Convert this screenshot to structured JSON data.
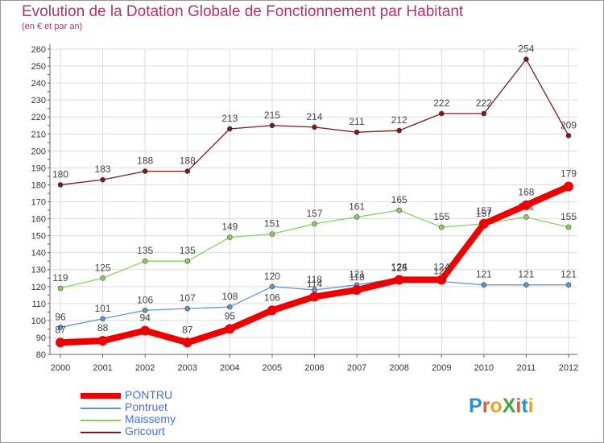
{
  "title": "Evolution de la Dotation Globale de Fonctionnement par Habitant",
  "subtitle": "(en € et par an)",
  "logo": {
    "text": "ProXiti"
  },
  "colors": {
    "title": "#b0336f",
    "axis": "#666666",
    "grid": "#dddddd",
    "legend_text": "#4a6fd6"
  },
  "chart_data": {
    "type": "line",
    "title": "Evolution de la Dotation Globale de Fonctionnement par Habitant",
    "subtitle": "(en € et par an)",
    "xlabel": "",
    "ylabel": "",
    "ylim": [
      80,
      260
    ],
    "yticks": [
      80,
      90,
      100,
      110,
      120,
      130,
      140,
      150,
      160,
      170,
      180,
      190,
      200,
      210,
      220,
      230,
      240,
      250,
      260
    ],
    "grid": true,
    "legend_position": "bottom-left",
    "categories": [
      "2000",
      "2001",
      "2002",
      "2003",
      "2004",
      "2005",
      "2006",
      "2007",
      "2008",
      "2009",
      "2010",
      "2011",
      "2012"
    ],
    "series": [
      {
        "name": "Gricourt",
        "color": "#7b1a1a",
        "weight": "thin",
        "values": [
          180,
          183,
          188,
          188,
          213,
          215,
          214,
          211,
          212,
          222,
          222,
          254,
          209
        ]
      },
      {
        "name": "Maissemy",
        "color": "#88d060",
        "weight": "thin",
        "values": [
          119,
          125,
          135,
          135,
          149,
          151,
          157,
          161,
          165,
          155,
          157,
          161,
          155
        ]
      },
      {
        "name": "Pontruet",
        "color": "#5e96cc",
        "weight": "thin",
        "values": [
          96,
          101,
          106,
          107,
          108,
          120,
          118,
          121,
          125,
          123,
          121,
          121,
          121
        ]
      },
      {
        "name": "PONTRU",
        "color": "#ee0000",
        "weight": "thick",
        "values": [
          87,
          88,
          94,
          87,
          95,
          106,
          114,
          118,
          124,
          124,
          157,
          168,
          179
        ]
      }
    ],
    "legend": [
      "PONTRU",
      "Pontruet",
      "Maissemy",
      "Gricourt"
    ]
  }
}
